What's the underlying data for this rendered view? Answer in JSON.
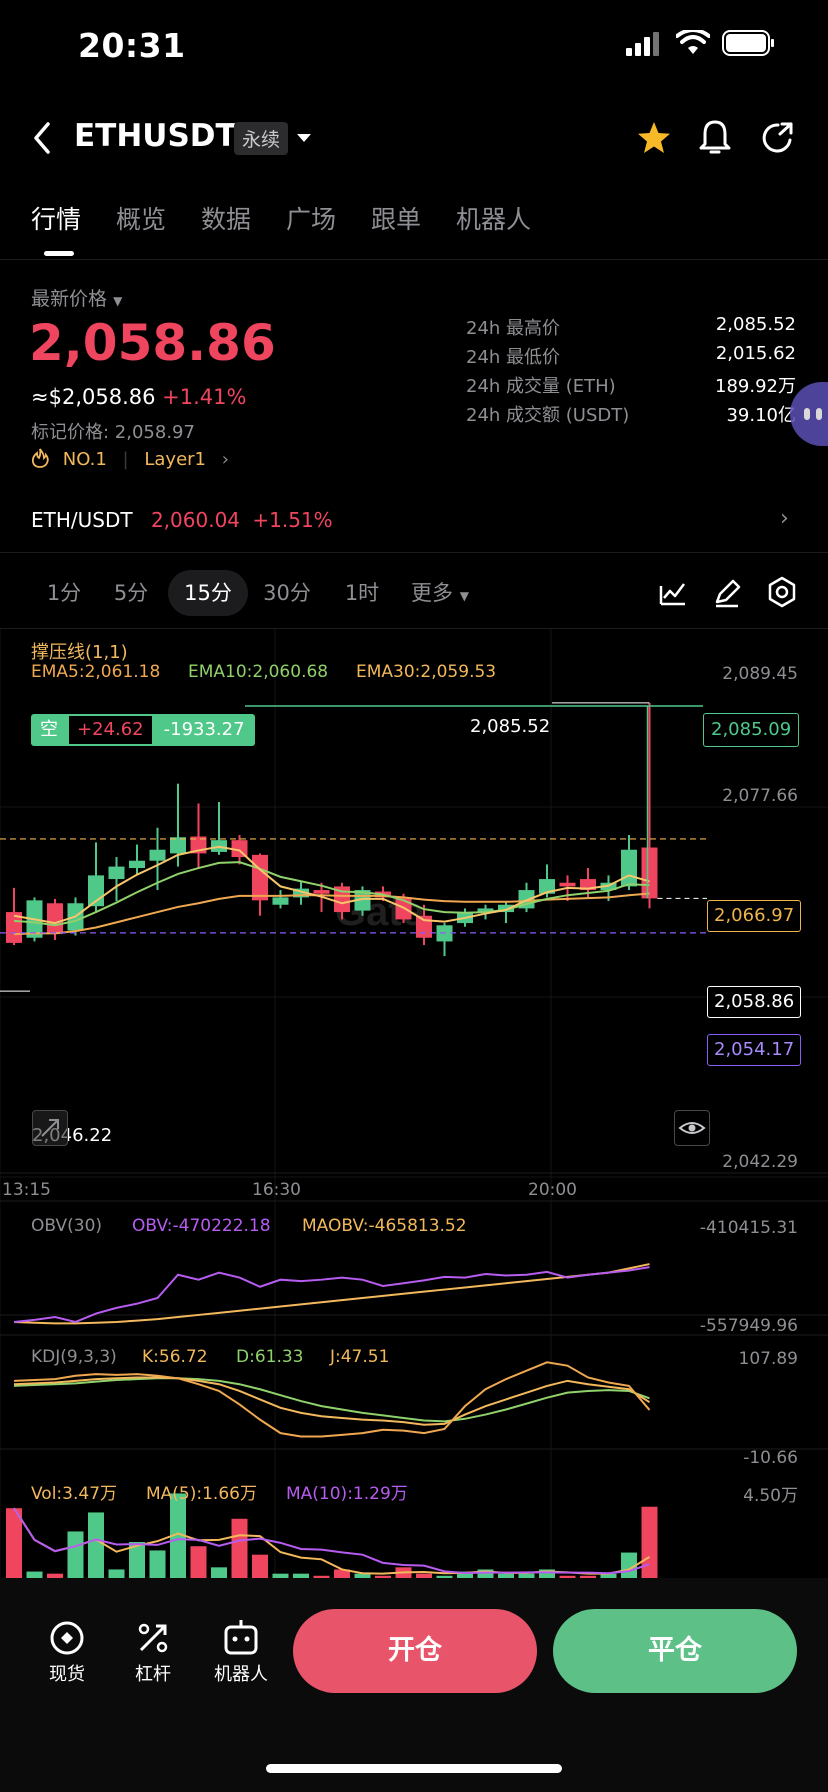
{
  "status_bar": {
    "time": "20:31"
  },
  "header": {
    "symbol": "ETHUSDT",
    "badge": "永续"
  },
  "tabs": [
    "行情",
    "概览",
    "数据",
    "广场",
    "跟单",
    "机器人"
  ],
  "price": {
    "label": "最新价格",
    "last": "2,058.86",
    "usd": "≈$2,058.86",
    "change": "+1.41%",
    "mark_label": "标记价格: 2,058.97",
    "rank": "NO.1",
    "sector": "Layer1"
  },
  "stats": [
    {
      "label": "24h 最高价",
      "value": "2,085.52"
    },
    {
      "label": "24h 最低价",
      "value": "2,015.62"
    },
    {
      "label": "24h 成交量 (ETH)",
      "value": "189.92万"
    },
    {
      "label": "24h 成交额 (USDT)",
      "value": "39.10亿"
    }
  ],
  "spot": {
    "pair": "ETH/USDT",
    "price": "2,060.04",
    "change": "+1.51%"
  },
  "intervals": [
    "1分",
    "5分",
    "15分",
    "30分",
    "1时",
    "更多"
  ],
  "active_interval": "15分",
  "chart": {
    "indicator_title": "撑压线(1,1)",
    "ema5": "EMA5:2,061.18",
    "ema10": "EMA10:2,060.68",
    "ema30": "EMA30:2,059.53",
    "position": {
      "side": "空",
      "pnl": "+24.62",
      "amount": "-1933.27"
    },
    "high_label": "2,085.52",
    "low_label": "2,046.22",
    "right_axis": [
      "2,089.45",
      "2,077.66",
      "2,042.29"
    ],
    "tag_resistance": "2,085.09",
    "tag_support_orange": "2,066.97",
    "tag_last": "2,058.86",
    "tag_purple": "2,054.17",
    "time_labels": [
      "13:15",
      "16:30",
      "20:00"
    ],
    "colors": {
      "up": "#4fc88a",
      "down": "#f0455f",
      "ema5": "#f7c66b",
      "ema10": "#8fd16a",
      "ema30": "#f0a850"
    }
  },
  "obv": {
    "title": "OBV(30)",
    "obv": "OBV:-470222.18",
    "maobv": "MAOBV:-465813.52",
    "top": "-410415.31",
    "bottom": "-557949.96"
  },
  "kdj": {
    "title": "KDJ(9,3,3)",
    "k": "K:56.72",
    "d": "D:61.33",
    "j": "J:47.51",
    "top": "107.89",
    "bottom": "-10.66"
  },
  "vol": {
    "vol": "Vol:3.47万",
    "ma5": "MA(5):1.66万",
    "ma10": "MA(10):1.29万",
    "top": "4.50万"
  },
  "bottom_bar": {
    "spot": "现货",
    "leverage": "杠杆",
    "robot": "机器人",
    "open": "开仓",
    "close": "平仓"
  },
  "chart_data": {
    "type": "candlestick",
    "candles": [
      {
        "o": 2057.0,
        "h": 2060.3,
        "l": 2052.5,
        "c": 2052.8
      },
      {
        "o": 2053.5,
        "h": 2059.0,
        "l": 2053.0,
        "c": 2058.6
      },
      {
        "o": 2058.2,
        "h": 2058.8,
        "l": 2053.2,
        "c": 2054.0
      },
      {
        "o": 2054.5,
        "h": 2059.0,
        "l": 2053.8,
        "c": 2058.2
      },
      {
        "o": 2057.8,
        "h": 2066.5,
        "l": 2057.0,
        "c": 2062.0
      },
      {
        "o": 2061.5,
        "h": 2064.5,
        "l": 2058.5,
        "c": 2063.2
      },
      {
        "o": 2063.0,
        "h": 2066.2,
        "l": 2062.0,
        "c": 2064.0
      },
      {
        "o": 2064.0,
        "h": 2068.5,
        "l": 2060.0,
        "c": 2065.5
      },
      {
        "o": 2065.0,
        "h": 2074.5,
        "l": 2063.2,
        "c": 2067.2
      },
      {
        "o": 2067.3,
        "h": 2071.8,
        "l": 2063.0,
        "c": 2065.0
      },
      {
        "o": 2065.2,
        "h": 2072.0,
        "l": 2064.8,
        "c": 2066.8
      },
      {
        "o": 2066.8,
        "h": 2067.5,
        "l": 2063.5,
        "c": 2064.5
      },
      {
        "o": 2064.8,
        "h": 2065.0,
        "l": 2056.5,
        "c": 2058.6
      },
      {
        "o": 2058.0,
        "h": 2060.0,
        "l": 2057.5,
        "c": 2059.0
      },
      {
        "o": 2059.0,
        "h": 2061.2,
        "l": 2058.0,
        "c": 2060.2
      },
      {
        "o": 2060.0,
        "h": 2061.0,
        "l": 2057.0,
        "c": 2059.5
      },
      {
        "o": 2060.5,
        "h": 2061.0,
        "l": 2056.0,
        "c": 2057.0
      },
      {
        "o": 2057.2,
        "h": 2060.5,
        "l": 2056.5,
        "c": 2060.0
      },
      {
        "o": 2059.8,
        "h": 2060.5,
        "l": 2058.5,
        "c": 2059.0
      },
      {
        "o": 2059.0,
        "h": 2059.5,
        "l": 2055.5,
        "c": 2056.0
      },
      {
        "o": 2056.5,
        "h": 2058.0,
        "l": 2052.5,
        "c": 2053.5
      },
      {
        "o": 2053.0,
        "h": 2055.5,
        "l": 2051.0,
        "c": 2055.2
      },
      {
        "o": 2055.5,
        "h": 2057.5,
        "l": 2055.0,
        "c": 2057.0
      },
      {
        "o": 2057.0,
        "h": 2058.0,
        "l": 2056.0,
        "c": 2057.5
      },
      {
        "o": 2057.0,
        "h": 2058.5,
        "l": 2055.5,
        "c": 2058.0
      },
      {
        "o": 2057.5,
        "h": 2061.0,
        "l": 2057.0,
        "c": 2060.0
      },
      {
        "o": 2059.5,
        "h": 2063.5,
        "l": 2059.0,
        "c": 2061.5
      },
      {
        "o": 2061.0,
        "h": 2062.0,
        "l": 2058.5,
        "c": 2060.5
      },
      {
        "o": 2061.5,
        "h": 2063.0,
        "l": 2059.0,
        "c": 2060.0
      },
      {
        "o": 2060.0,
        "h": 2062.0,
        "l": 2058.5,
        "c": 2061.0
      },
      {
        "o": 2060.5,
        "h": 2067.5,
        "l": 2060.0,
        "c": 2065.5
      },
      {
        "o": 2065.8,
        "h": 2085.5,
        "l": 2057.5,
        "c": 2058.86
      }
    ],
    "ema5": [
      2056.5,
      2056.0,
      2055.5,
      2056.4,
      2058.5,
      2060.5,
      2062.1,
      2063.4,
      2064.8,
      2065.4,
      2065.9,
      2065.4,
      2062.8,
      2060.5,
      2059.8,
      2059.1,
      2058.2,
      2058.8,
      2058.8,
      2057.6,
      2055.9,
      2055.7,
      2056.2,
      2056.8,
      2057.3,
      2058.6,
      2059.7,
      2060.3,
      2060.2,
      2060.6,
      2062.0,
      2061.18
    ],
    "ema10": [
      2055.8,
      2055.6,
      2055.2,
      2055.8,
      2057.0,
      2058.3,
      2059.7,
      2061.0,
      2062.2,
      2063.0,
      2063.7,
      2063.8,
      2062.9,
      2061.8,
      2061.2,
      2060.6,
      2059.8,
      2059.7,
      2059.4,
      2058.6,
      2057.4,
      2057.0,
      2056.9,
      2057.0,
      2057.3,
      2058.1,
      2058.8,
      2059.3,
      2059.6,
      2059.9,
      2060.8,
      2060.68
    ],
    "ema30": [
      2054.0,
      2054.1,
      2054.1,
      2054.4,
      2054.9,
      2055.6,
      2056.3,
      2057.0,
      2057.7,
      2058.2,
      2058.8,
      2059.2,
      2059.2,
      2059.2,
      2059.3,
      2059.3,
      2059.2,
      2059.2,
      2059.2,
      2059.0,
      2058.7,
      2058.5,
      2058.4,
      2058.4,
      2058.4,
      2058.5,
      2058.7,
      2058.8,
      2058.9,
      2059.0,
      2059.3,
      2059.53
    ],
    "obv_line": [
      -548000,
      -545000,
      -541000,
      -548000,
      -536000,
      -528000,
      -522000,
      -514000,
      -481000,
      -488000,
      -478000,
      -485000,
      -498000,
      -488000,
      -490000,
      -488000,
      -485000,
      -488000,
      -497000,
      -493000,
      -489000,
      -484000,
      -485000,
      -480000,
      -482000,
      -481000,
      -477000,
      -485000,
      -481000,
      -478000,
      -475000,
      -470222
    ],
    "maobv_line": [
      -548000,
      -549000,
      -550000,
      -550000,
      -549000,
      -548000,
      -546000,
      -544000,
      -541000,
      -538000,
      -535000,
      -532000,
      -529000,
      -526000,
      -523000,
      -520000,
      -517000,
      -514000,
      -511000,
      -508000,
      -505000,
      -502000,
      -499000,
      -496000,
      -493000,
      -490000,
      -487000,
      -484000,
      -481000,
      -478000,
      -472000,
      -465813
    ],
    "kdj_k": [
      78,
      79,
      80,
      82,
      84,
      85,
      86,
      86,
      85,
      82,
      78,
      70,
      60,
      50,
      44,
      40,
      38,
      36,
      35,
      33,
      30,
      31,
      42,
      52,
      60,
      68,
      76,
      82,
      78,
      75,
      72,
      56.72
    ],
    "kdj_d": [
      76,
      77,
      78,
      79,
      81,
      83,
      84,
      85,
      85,
      84,
      82,
      78,
      72,
      65,
      58,
      52,
      48,
      44,
      41,
      38,
      35,
      34,
      37,
      42,
      48,
      55,
      62,
      68,
      70,
      71,
      70,
      61.33
    ],
    "kdj_j": [
      82,
      83,
      84,
      88,
      90,
      89,
      90,
      88,
      85,
      78,
      70,
      54,
      36,
      20,
      16,
      16,
      18,
      20,
      24,
      23,
      20,
      25,
      52,
      72,
      84,
      94,
      104,
      100,
      86,
      80,
      76,
      47.51
    ],
    "volume": [
      3.4,
      0.4,
      0.3,
      2.3,
      3.2,
      0.5,
      1.8,
      1.4,
      4.1,
      1.6,
      0.6,
      2.9,
      1.2,
      0.3,
      0.3,
      0.2,
      0.5,
      0.3,
      0.2,
      0.6,
      0.3,
      0.2,
      0.4,
      0.5,
      0.3,
      0.3,
      0.5,
      0.2,
      0.2,
      0.3,
      1.3,
      3.47
    ]
  }
}
